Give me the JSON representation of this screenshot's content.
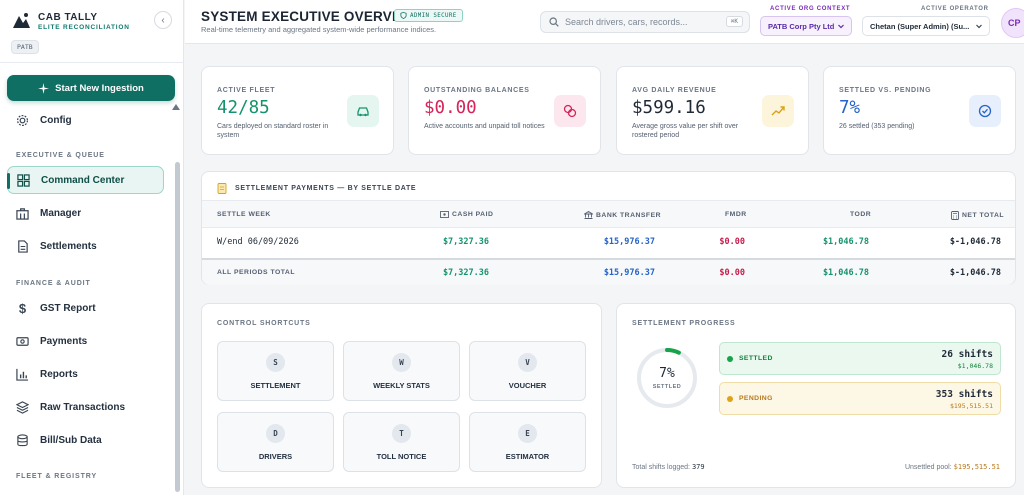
{
  "brand": {
    "title": "CAB TALLY",
    "subtitle": "ELITE RECONCILIATION",
    "org_chip": "PATB"
  },
  "sidebar": {
    "ingest_button": "Start New Ingestion",
    "config_item": "Config",
    "sections": [
      {
        "title": "EXECUTIVE & QUEUE",
        "items": [
          "Command Center",
          "Manager",
          "Settlements"
        ]
      },
      {
        "title": "FINANCE & AUDIT",
        "items": [
          "GST Report",
          "Payments",
          "Reports",
          "Raw Transactions",
          "Bill/Sub Data"
        ]
      },
      {
        "title": "FLEET & REGISTRY",
        "items": []
      }
    ],
    "active_item": "Command Center"
  },
  "header": {
    "title": "SYSTEM EXECUTIVE OVERVIEW",
    "badge": "ADMIN SECURE",
    "subtitle": "Real-time telemetry and aggregated system-wide performance indices.",
    "search_placeholder": "Search drivers, cars, records...",
    "search_shortcut": "⌘K",
    "org_context_label": "ACTIVE ORG CONTEXT",
    "org_context_value": "PATB Corp Pty Ltd",
    "operator_label": "ACTIVE OPERATOR",
    "operator_value": "Chetan (Super Admin) (Su...",
    "avatar_initials": "CP"
  },
  "kpis": [
    {
      "label": "ACTIVE FLEET",
      "value": "42/85",
      "desc": "Cars deployed on standard roster in system",
      "color": "#16936e",
      "icon": "car-icon"
    },
    {
      "label": "OUTSTANDING BALANCES",
      "value": "$0.00",
      "desc": "Active accounts and unpaid toll notices",
      "color": "#d6245a",
      "icon": "coins-icon"
    },
    {
      "label": "AVG DAILY REVENUE",
      "value": "$599.16",
      "desc": "Average gross value per shift over rostered period",
      "color": "#1f2a37",
      "icon": "trend-up-icon"
    },
    {
      "label": "SETTLED VS. PENDING",
      "value": "7%",
      "desc": "26 settled (353 pending)",
      "color": "#2563c9",
      "icon": "check-circle-icon"
    }
  ],
  "settlement_table": {
    "title": "SETTLEMENT PAYMENTS — BY SETTLE DATE",
    "columns": [
      "SETTLE WEEK",
      "CASH PAID",
      "BANK TRANSFER",
      "FMDR",
      "TODR",
      "NET TOTAL"
    ],
    "rows": [
      {
        "week": "W/end 06/09/2026",
        "cash": "$7,327.36",
        "bank": "$15,976.37",
        "fmdr": "$0.00",
        "todr": "$1,046.78",
        "net": "$-1,046.78"
      }
    ],
    "totals": {
      "label": "ALL PERIODS TOTAL",
      "cash": "$7,327.36",
      "bank": "$15,976.37",
      "fmdr": "$0.00",
      "todr": "$1,046.78",
      "net": "$-1,046.78"
    }
  },
  "shortcuts": {
    "title": "CONTROL SHORTCUTS",
    "items": [
      {
        "key": "S",
        "label": "SETTLEMENT"
      },
      {
        "key": "W",
        "label": "WEEKLY STATS"
      },
      {
        "key": "V",
        "label": "VOUCHER"
      },
      {
        "key": "D",
        "label": "DRIVERS"
      },
      {
        "key": "T",
        "label": "TOLL NOTICE"
      },
      {
        "key": "E",
        "label": "ESTIMATOR"
      }
    ]
  },
  "progress": {
    "title": "SETTLEMENT PROGRESS",
    "percent_label": "7%",
    "percent_value": 0.07,
    "ring_sub": "SETTLED",
    "settled": {
      "label": "SETTLED",
      "count": "26 shifts",
      "amount": "$1,046.78"
    },
    "pending": {
      "label": "PENDING",
      "count": "353 shifts",
      "amount": "$195,515.51"
    },
    "footer_left_label": "Total shifts logged:",
    "footer_left_value": "379",
    "footer_right_label": "Unsettled pool:",
    "footer_right_value": "$195,515.51"
  }
}
